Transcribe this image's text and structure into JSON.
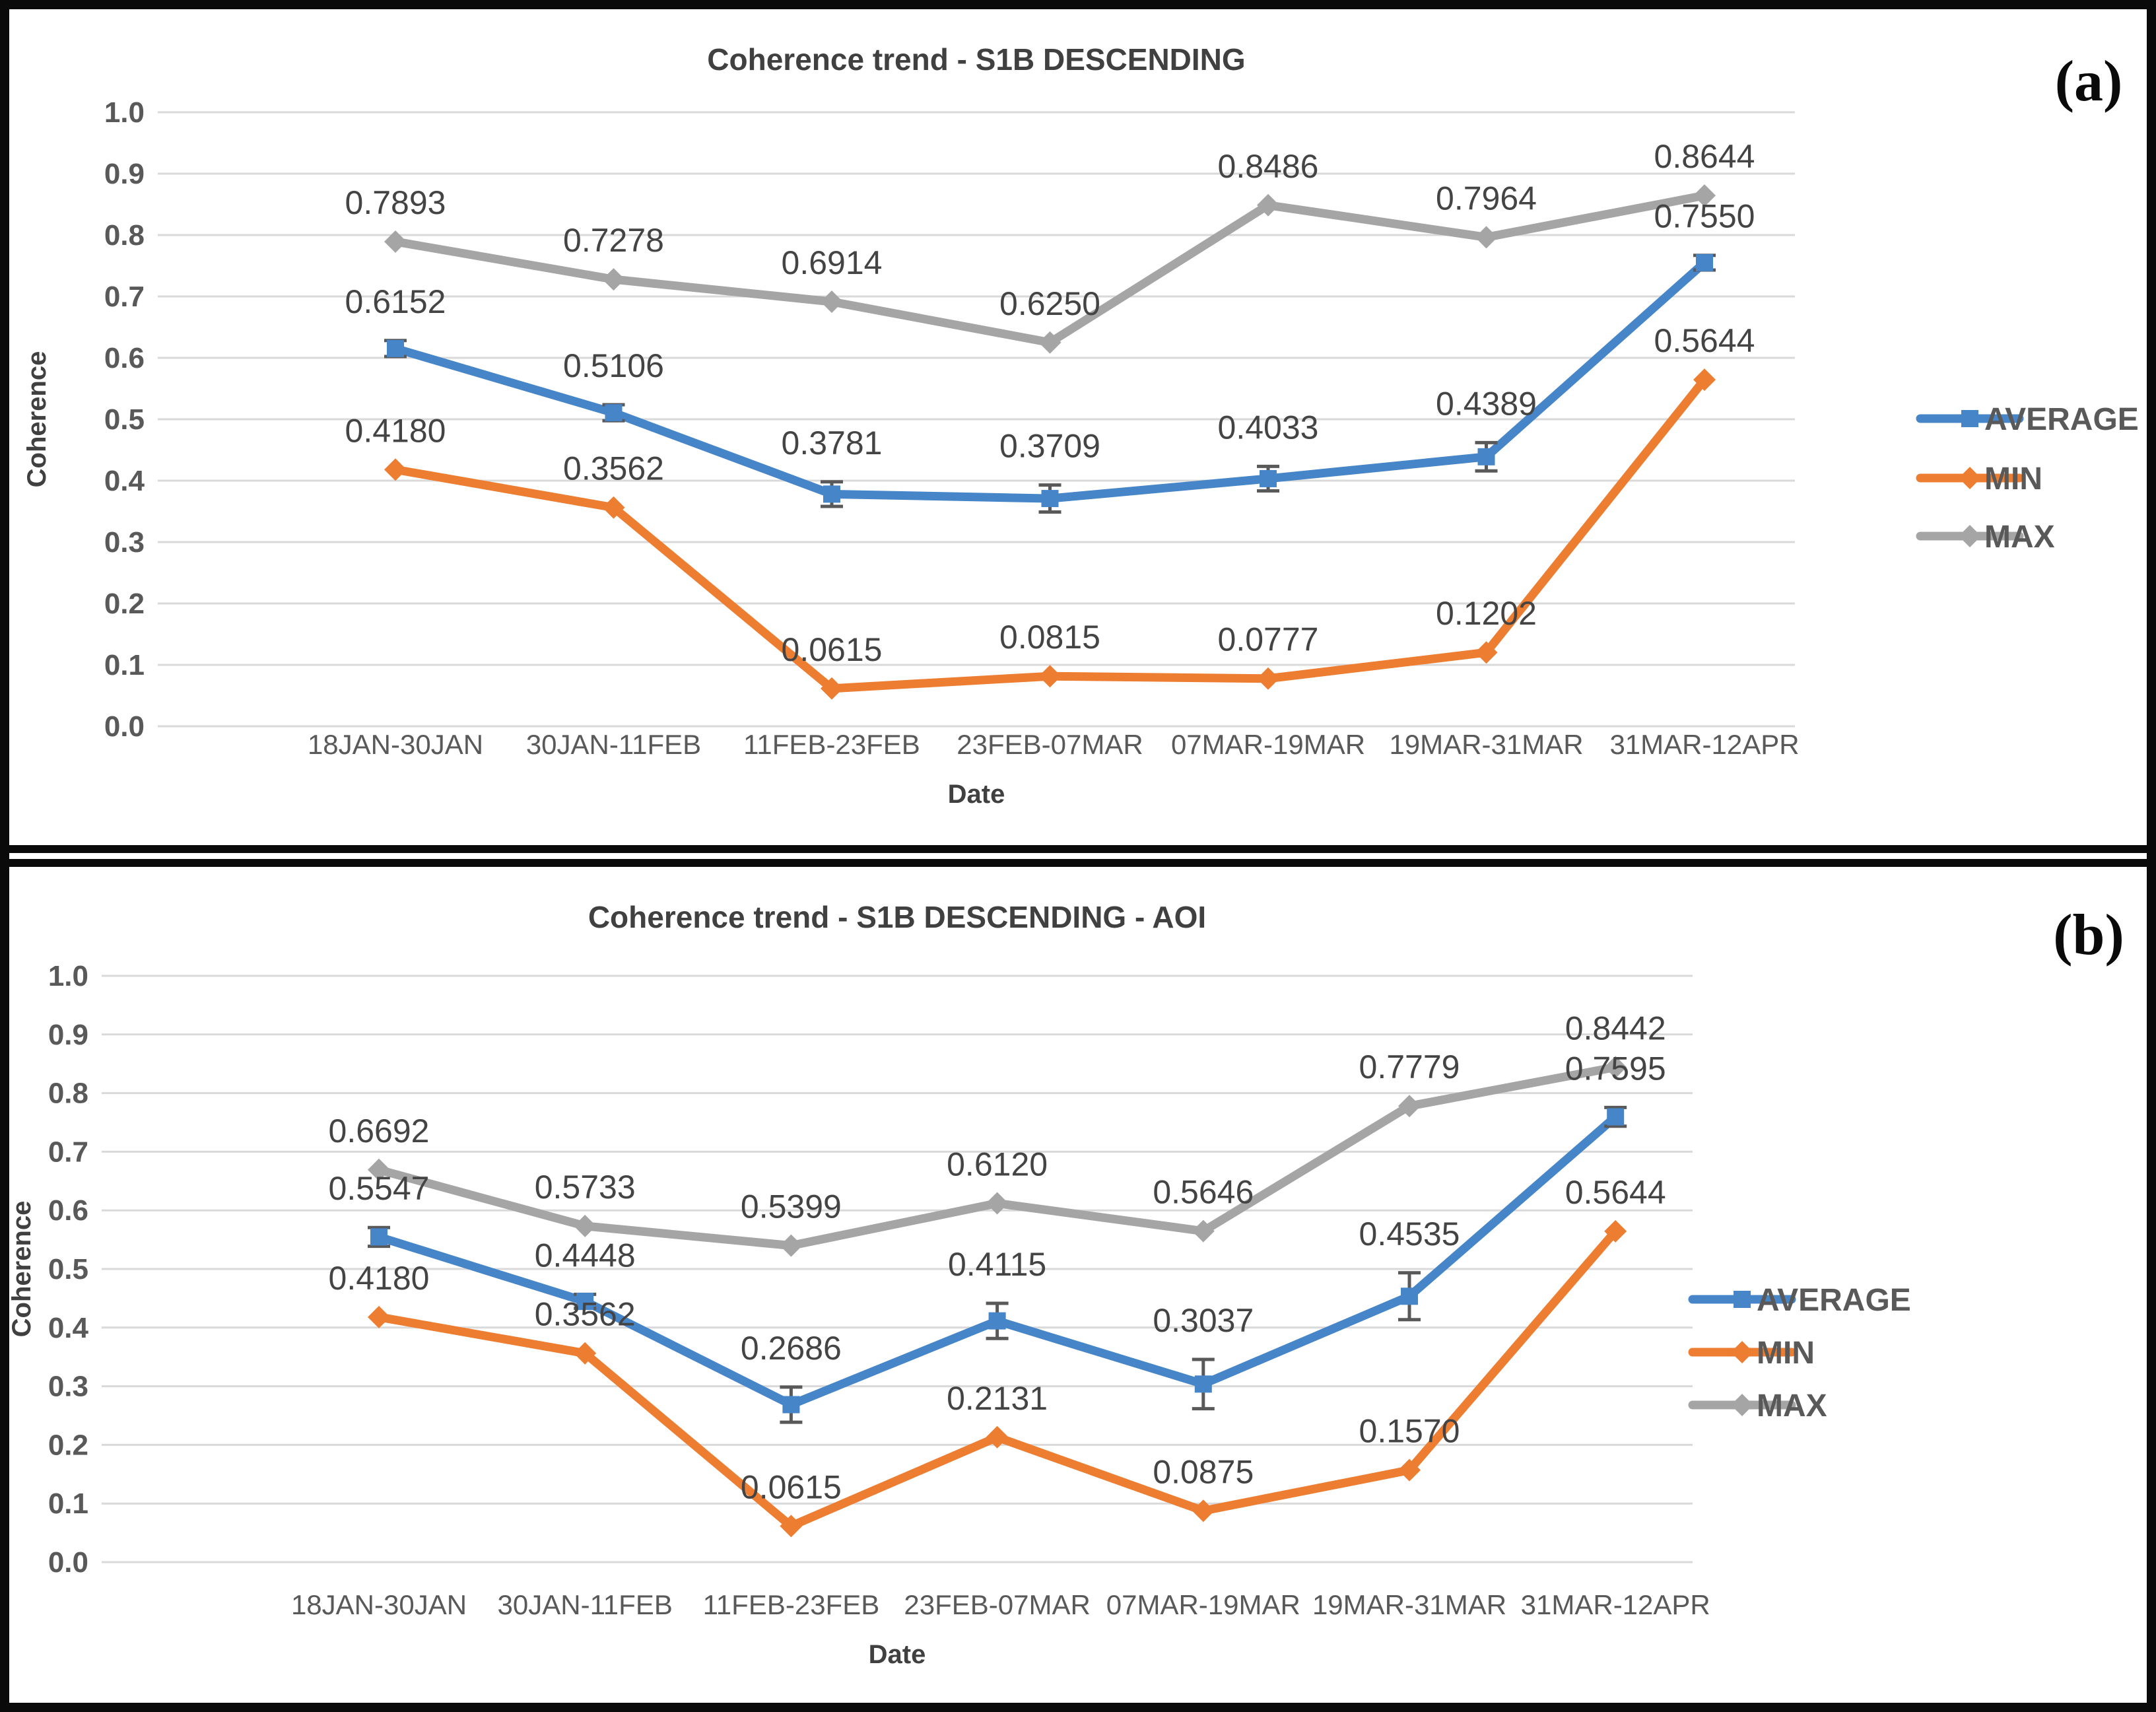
{
  "figure": {
    "background": "#ffffff",
    "frame_color": "#0a0a0a",
    "panel_a_label": "(a)",
    "panel_b_label": "(b)"
  },
  "colors": {
    "average": "#4685C8",
    "min": "#ED7D31",
    "max": "#A5A5A5",
    "gridline": "#D9D9D9",
    "error_bar": "#595959",
    "tick_text": "#595959",
    "title_text": "#404040",
    "value_label_text": "#444444"
  },
  "chart_data": [
    {
      "type": "line",
      "panel_label": "(a)",
      "title": "Coherence trend - S1B DESCENDING",
      "xlabel": "Date",
      "ylabel": "Coherence",
      "ylim": [
        0.0,
        1.0
      ],
      "ytick_step": 0.1,
      "ytick_labels": [
        "1.0",
        "0.9",
        "0.8",
        "0.7",
        "0.6",
        "0.5",
        "0.4",
        "0.3",
        "0.2",
        "0.1",
        "0.0"
      ],
      "grid": true,
      "legend_position": "right",
      "value_labels": true,
      "categories": [
        "18JAN-30JAN",
        "30JAN-11FEB",
        "11FEB-23FEB",
        "23FEB-07MAR",
        "07MAR-19MAR",
        "19MAR-31MAR",
        "31MAR-12APR"
      ],
      "series": [
        {
          "name": "AVERAGE",
          "color": "#4685C8",
          "marker": "square",
          "values": [
            0.6152,
            0.5106,
            0.3781,
            0.3709,
            0.4033,
            0.4389,
            0.755
          ],
          "error": [
            0.013,
            0.013,
            0.02,
            0.022,
            0.02,
            0.023,
            0.012
          ]
        },
        {
          "name": "MIN",
          "color": "#ED7D31",
          "marker": "diamond",
          "values": [
            0.418,
            0.3562,
            0.0615,
            0.0815,
            0.0777,
            0.1202,
            0.5644
          ]
        },
        {
          "name": "MAX",
          "color": "#A5A5A5",
          "marker": "diamond",
          "values": [
            0.7893,
            0.7278,
            0.6914,
            0.625,
            0.8486,
            0.7964,
            0.8644
          ]
        }
      ]
    },
    {
      "type": "line",
      "panel_label": "(b)",
      "title": "Coherence trend - S1B DESCENDING - AOI",
      "xlabel": "Date",
      "ylabel": "Coherence",
      "ylim": [
        0.0,
        1.0
      ],
      "ytick_step": 0.1,
      "ytick_labels": [
        "1.0",
        "0.9",
        "0.8",
        "0.7",
        "0.6",
        "0.5",
        "0.4",
        "0.3",
        "0.2",
        "0.1",
        "0.0"
      ],
      "grid": true,
      "legend_position": "right",
      "value_labels": true,
      "categories": [
        "18JAN-30JAN",
        "30JAN-11FEB",
        "11FEB-23FEB",
        "23FEB-07MAR",
        "07MAR-19MAR",
        "19MAR-31MAR",
        "31MAR-12APR"
      ],
      "series": [
        {
          "name": "AVERAGE",
          "color": "#4685C8",
          "marker": "square",
          "values": [
            0.5547,
            0.4448,
            0.2686,
            0.4115,
            0.3037,
            0.4535,
            0.7595
          ],
          "error": [
            0.016,
            0.012,
            0.03,
            0.03,
            0.042,
            0.04,
            0.016
          ]
        },
        {
          "name": "MIN",
          "color": "#ED7D31",
          "marker": "diamond",
          "values": [
            0.418,
            0.3562,
            0.0615,
            0.2131,
            0.0875,
            0.157,
            0.5644
          ]
        },
        {
          "name": "MAX",
          "color": "#A5A5A5",
          "marker": "diamond",
          "values": [
            0.6692,
            0.5733,
            0.5399,
            0.612,
            0.5646,
            0.7779,
            0.8442
          ]
        }
      ]
    }
  ]
}
